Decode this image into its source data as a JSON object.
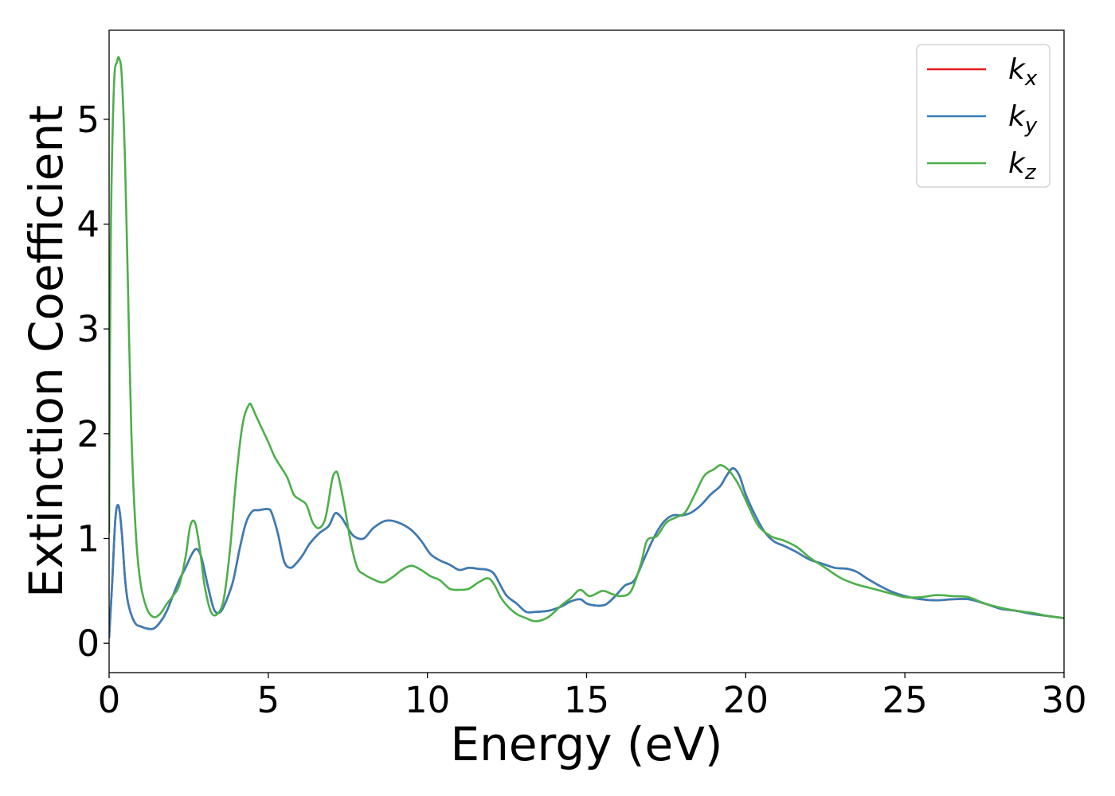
{
  "chart_data": {
    "type": "line",
    "xlabel": "Energy (eV)",
    "ylabel": "Extinction Coefficient",
    "xlim": [
      0,
      30
    ],
    "ylim": [
      -0.28,
      5.85
    ],
    "xticks": [
      0,
      5,
      10,
      15,
      20,
      25,
      30
    ],
    "yticks": [
      0,
      1,
      2,
      3,
      4,
      5
    ],
    "grid": false,
    "legend_position": "top-right",
    "series": [
      {
        "name": "k_x",
        "label_base": "k",
        "label_sub": "x",
        "color": "#e41a1c",
        "x": [
          0,
          0.1,
          0.2,
          0.3,
          0.4,
          0.5,
          0.6,
          0.8,
          1.0,
          1.2,
          1.4,
          1.6,
          1.8,
          2.0,
          2.2,
          2.4,
          2.6,
          2.75,
          2.9,
          3.1,
          3.3,
          3.5,
          3.7,
          3.9,
          4.1,
          4.3,
          4.5,
          4.7,
          4.9,
          5.0,
          5.1,
          5.3,
          5.5,
          5.7,
          5.9,
          6.1,
          6.3,
          6.6,
          6.9,
          7.1,
          7.3,
          7.5,
          7.7,
          8.0,
          8.3,
          8.7,
          9.1,
          9.5,
          9.8,
          10.1,
          10.4,
          10.7,
          11.0,
          11.3,
          11.6,
          11.9,
          12.1,
          12.3,
          12.5,
          12.8,
          13.1,
          13.4,
          13.8,
          14.2,
          14.5,
          14.8,
          15.0,
          15.3,
          15.6,
          15.9,
          16.2,
          16.5,
          16.8,
          17.1,
          17.4,
          17.7,
          18.0,
          18.3,
          18.6,
          18.9,
          19.2,
          19.4,
          19.6,
          19.8,
          20.0,
          20.3,
          20.6,
          20.9,
          21.2,
          21.6,
          22.0,
          22.4,
          22.8,
          23.2,
          23.5,
          23.8,
          24.2,
          24.6,
          25.0,
          25.5,
          26.0,
          26.5,
          27.0,
          27.5,
          28.0,
          28.5,
          29.0,
          29.5,
          30.0
        ],
        "y": [
          0.05,
          0.6,
          1.2,
          1.31,
          1.05,
          0.62,
          0.38,
          0.2,
          0.16,
          0.14,
          0.14,
          0.2,
          0.3,
          0.45,
          0.6,
          0.72,
          0.85,
          0.9,
          0.82,
          0.55,
          0.32,
          0.3,
          0.42,
          0.6,
          0.9,
          1.15,
          1.26,
          1.27,
          1.28,
          1.28,
          1.25,
          1.05,
          0.78,
          0.72,
          0.77,
          0.85,
          0.95,
          1.05,
          1.12,
          1.24,
          1.2,
          1.1,
          1.02,
          1.0,
          1.1,
          1.17,
          1.15,
          1.08,
          0.98,
          0.85,
          0.79,
          0.75,
          0.7,
          0.72,
          0.71,
          0.7,
          0.66,
          0.55,
          0.45,
          0.38,
          0.3,
          0.3,
          0.31,
          0.35,
          0.4,
          0.42,
          0.38,
          0.36,
          0.37,
          0.45,
          0.55,
          0.6,
          0.8,
          1.0,
          1.15,
          1.22,
          1.22,
          1.25,
          1.32,
          1.42,
          1.5,
          1.6,
          1.67,
          1.6,
          1.42,
          1.22,
          1.06,
          0.97,
          0.93,
          0.87,
          0.8,
          0.76,
          0.72,
          0.71,
          0.68,
          0.62,
          0.55,
          0.49,
          0.45,
          0.42,
          0.41,
          0.42,
          0.42,
          0.38,
          0.33,
          0.31,
          0.28,
          0.26,
          0.24
        ]
      },
      {
        "name": "k_y",
        "label_base": "k",
        "label_sub": "y",
        "color": "#377eb8",
        "x": [
          0,
          0.1,
          0.2,
          0.3,
          0.4,
          0.5,
          0.6,
          0.8,
          1.0,
          1.2,
          1.4,
          1.6,
          1.8,
          2.0,
          2.2,
          2.4,
          2.6,
          2.75,
          2.9,
          3.1,
          3.3,
          3.5,
          3.7,
          3.9,
          4.1,
          4.3,
          4.5,
          4.7,
          4.9,
          5.0,
          5.1,
          5.3,
          5.5,
          5.7,
          5.9,
          6.1,
          6.3,
          6.6,
          6.9,
          7.1,
          7.3,
          7.5,
          7.7,
          8.0,
          8.3,
          8.7,
          9.1,
          9.5,
          9.8,
          10.1,
          10.4,
          10.7,
          11.0,
          11.3,
          11.6,
          11.9,
          12.1,
          12.3,
          12.5,
          12.8,
          13.1,
          13.4,
          13.8,
          14.2,
          14.5,
          14.8,
          15.0,
          15.3,
          15.6,
          15.9,
          16.2,
          16.5,
          16.8,
          17.1,
          17.4,
          17.7,
          18.0,
          18.3,
          18.6,
          18.9,
          19.2,
          19.4,
          19.6,
          19.8,
          20.0,
          20.3,
          20.6,
          20.9,
          21.2,
          21.6,
          22.0,
          22.4,
          22.8,
          23.2,
          23.5,
          23.8,
          24.2,
          24.6,
          25.0,
          25.5,
          26.0,
          26.5,
          27.0,
          27.5,
          28.0,
          28.5,
          29.0,
          29.5,
          30.0
        ],
        "y": [
          0.05,
          0.6,
          1.2,
          1.31,
          1.05,
          0.62,
          0.38,
          0.2,
          0.16,
          0.14,
          0.14,
          0.2,
          0.3,
          0.45,
          0.6,
          0.72,
          0.85,
          0.9,
          0.82,
          0.55,
          0.32,
          0.3,
          0.42,
          0.6,
          0.9,
          1.15,
          1.26,
          1.27,
          1.28,
          1.28,
          1.25,
          1.05,
          0.78,
          0.72,
          0.77,
          0.85,
          0.95,
          1.05,
          1.12,
          1.24,
          1.2,
          1.1,
          1.02,
          1.0,
          1.1,
          1.17,
          1.15,
          1.08,
          0.98,
          0.85,
          0.79,
          0.75,
          0.7,
          0.72,
          0.71,
          0.7,
          0.66,
          0.55,
          0.45,
          0.38,
          0.3,
          0.3,
          0.31,
          0.35,
          0.4,
          0.42,
          0.38,
          0.36,
          0.37,
          0.45,
          0.55,
          0.6,
          0.8,
          1.0,
          1.15,
          1.22,
          1.22,
          1.25,
          1.32,
          1.42,
          1.5,
          1.6,
          1.67,
          1.6,
          1.42,
          1.22,
          1.06,
          0.97,
          0.93,
          0.87,
          0.8,
          0.76,
          0.72,
          0.71,
          0.68,
          0.62,
          0.55,
          0.49,
          0.45,
          0.42,
          0.41,
          0.42,
          0.42,
          0.38,
          0.33,
          0.31,
          0.28,
          0.26,
          0.24
        ]
      },
      {
        "name": "k_z",
        "label_base": "k",
        "label_sub": "z",
        "color": "#4daf4a",
        "x": [
          0,
          0.05,
          0.15,
          0.25,
          0.32,
          0.4,
          0.5,
          0.6,
          0.7,
          0.85,
          1.0,
          1.2,
          1.4,
          1.6,
          1.8,
          2.0,
          2.2,
          2.4,
          2.55,
          2.7,
          2.85,
          3.0,
          3.2,
          3.4,
          3.6,
          3.8,
          4.0,
          4.2,
          4.4,
          4.5,
          4.6,
          4.8,
          5.0,
          5.2,
          5.4,
          5.6,
          5.8,
          6.0,
          6.2,
          6.4,
          6.6,
          6.8,
          7.0,
          7.1,
          7.2,
          7.4,
          7.6,
          7.8,
          8.0,
          8.3,
          8.6,
          8.9,
          9.2,
          9.5,
          9.8,
          10.1,
          10.4,
          10.7,
          11.0,
          11.3,
          11.6,
          11.9,
          12.1,
          12.3,
          12.5,
          12.8,
          13.1,
          13.4,
          13.8,
          14.2,
          14.5,
          14.8,
          15.1,
          15.5,
          15.8,
          16.1,
          16.4,
          16.7,
          16.9,
          17.2,
          17.5,
          17.8,
          18.1,
          18.4,
          18.7,
          19.0,
          19.2,
          19.4,
          19.6,
          19.8,
          20.1,
          20.4,
          20.8,
          21.2,
          21.6,
          22.0,
          22.5,
          23.0,
          23.5,
          24.0,
          24.5,
          25.0,
          25.5,
          26.0,
          26.5,
          27.0,
          27.5,
          28.0,
          28.5,
          29.0,
          29.5,
          30.0
        ],
        "y": [
          1.05,
          3.8,
          5.3,
          5.55,
          5.58,
          5.4,
          4.6,
          3.3,
          2.0,
          1.0,
          0.55,
          0.32,
          0.25,
          0.28,
          0.37,
          0.45,
          0.55,
          0.82,
          1.12,
          1.15,
          0.9,
          0.55,
          0.3,
          0.28,
          0.42,
          0.9,
          1.6,
          2.1,
          2.28,
          2.25,
          2.18,
          2.05,
          1.92,
          1.78,
          1.68,
          1.58,
          1.42,
          1.37,
          1.32,
          1.15,
          1.1,
          1.2,
          1.55,
          1.63,
          1.6,
          1.3,
          0.95,
          0.72,
          0.66,
          0.61,
          0.58,
          0.63,
          0.7,
          0.74,
          0.7,
          0.64,
          0.6,
          0.52,
          0.51,
          0.52,
          0.58,
          0.62,
          0.56,
          0.44,
          0.36,
          0.28,
          0.24,
          0.21,
          0.25,
          0.36,
          0.43,
          0.51,
          0.45,
          0.5,
          0.47,
          0.45,
          0.5,
          0.75,
          0.98,
          1.02,
          1.15,
          1.2,
          1.25,
          1.42,
          1.6,
          1.66,
          1.7,
          1.67,
          1.6,
          1.5,
          1.3,
          1.12,
          1.02,
          0.98,
          0.92,
          0.82,
          0.72,
          0.62,
          0.56,
          0.52,
          0.48,
          0.44,
          0.44,
          0.46,
          0.45,
          0.44,
          0.38,
          0.34,
          0.31,
          0.29,
          0.26,
          0.24
        ]
      }
    ]
  }
}
